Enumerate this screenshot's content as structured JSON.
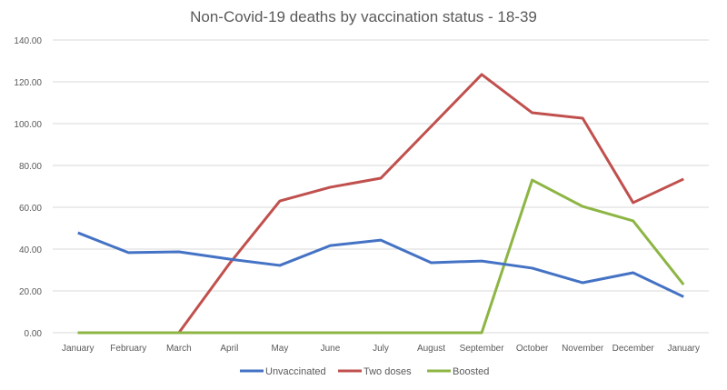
{
  "chart_data": {
    "type": "line",
    "title": "Non-Covid-19 deaths by vaccination status - 18-39",
    "xlabel": "",
    "ylabel": "",
    "ylim": [
      0,
      140
    ],
    "yticks": [
      "0.00",
      "20.00",
      "40.00",
      "60.00",
      "80.00",
      "100.00",
      "120.00",
      "140.00"
    ],
    "grid": true,
    "legend_position": "bottom",
    "categories": [
      "January",
      "February",
      "March",
      "April",
      "May",
      "June",
      "July",
      "August",
      "September",
      "October",
      "November",
      "December",
      "January"
    ],
    "series": [
      {
        "name": "Unvaccinated",
        "color": "#4472c4",
        "values": [
          47.8,
          38.3,
          38.7,
          35.2,
          32.2,
          41.7,
          44.3,
          33.5,
          34.3,
          30.9,
          23.9,
          28.7,
          17.2
        ]
      },
      {
        "name": "Two doses",
        "color": "#c0504d",
        "values": [
          0,
          0,
          0,
          33,
          63.0,
          69.6,
          73.9,
          98.7,
          123.5,
          105.2,
          102.6,
          62.2,
          73.5
        ]
      },
      {
        "name": "Boosted",
        "color": "#8db544",
        "values": [
          0,
          0,
          0,
          0,
          0,
          0,
          0,
          0,
          0,
          73.0,
          60.4,
          53.5,
          23.0
        ]
      }
    ]
  }
}
